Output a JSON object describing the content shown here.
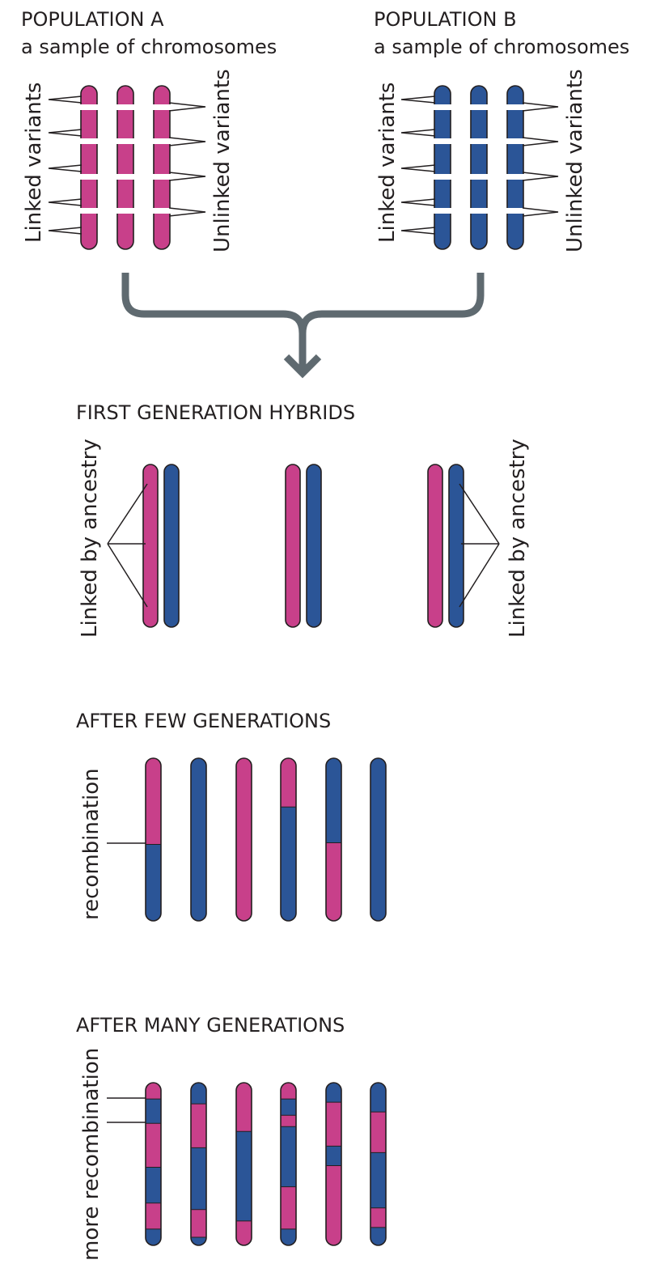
{
  "colors": {
    "population_a": "#c8408a",
    "population_b": "#2b5597",
    "outline": "#231f20",
    "arrow": "#5f6a70",
    "gap": "#ffffff"
  },
  "population_a": {
    "title": "POPULATION A",
    "subtitle": "a sample of chromosomes",
    "linked_label": "Linked variants",
    "unlinked_label": "Unlinked variants"
  },
  "population_b": {
    "title": "POPULATION B",
    "subtitle": "a sample of chromosomes",
    "linked_label": "Linked variants",
    "unlinked_label": "Unlinked variants"
  },
  "first_generation": {
    "title": "FIRST GENERATION HYBRIDS",
    "left_label": "Linked by ancestry",
    "right_label": "Linked by ancestry"
  },
  "few_generations": {
    "title": "AFTER FEW GENERATIONS",
    "side_label": "recombination",
    "chromosomes": [
      [
        [
          "A",
          0.53
        ],
        [
          "B",
          1
        ]
      ],
      [
        [
          "B",
          1
        ]
      ],
      [
        [
          "A",
          1
        ]
      ],
      [
        [
          "A",
          0.3
        ],
        [
          "B",
          1
        ]
      ],
      [
        [
          "B",
          0.52
        ],
        [
          "A",
          1
        ]
      ],
      [
        [
          "B",
          1
        ]
      ]
    ]
  },
  "many_generations": {
    "title": "AFTER MANY GENERATIONS",
    "side_label": "more recombination",
    "chromosomes": [
      [
        [
          "A",
          0.1
        ],
        [
          "B",
          0.25
        ],
        [
          "A",
          0.52
        ],
        [
          "B",
          0.74
        ],
        [
          "A",
          0.9
        ],
        [
          "B",
          1
        ]
      ],
      [
        [
          "B",
          0.13
        ],
        [
          "A",
          0.4
        ],
        [
          "B",
          0.78
        ],
        [
          "A",
          0.95
        ],
        [
          "B",
          1
        ]
      ],
      [
        [
          "A",
          0.3
        ],
        [
          "B",
          0.85
        ],
        [
          "A",
          1
        ]
      ],
      [
        [
          "A",
          0.1
        ],
        [
          "B",
          0.2
        ],
        [
          "A",
          0.27
        ],
        [
          "B",
          0.64
        ],
        [
          "A",
          0.9
        ],
        [
          "B",
          1
        ]
      ],
      [
        [
          "B",
          0.12
        ],
        [
          "A",
          0.39
        ],
        [
          "B",
          0.51
        ],
        [
          "A",
          1
        ]
      ],
      [
        [
          "B",
          0.18
        ],
        [
          "A",
          0.43
        ],
        [
          "B",
          0.77
        ],
        [
          "A",
          0.89
        ],
        [
          "B",
          1
        ]
      ]
    ]
  }
}
